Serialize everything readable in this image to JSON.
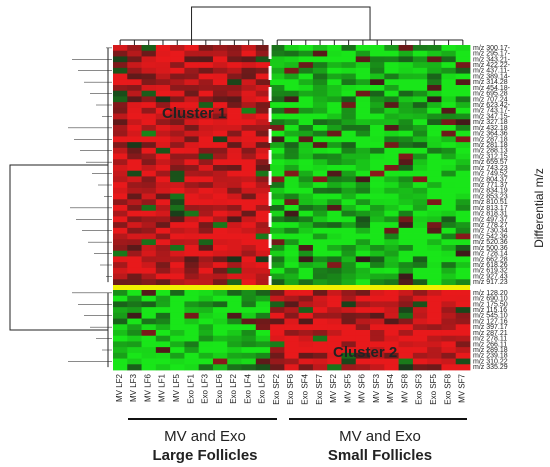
{
  "chart_data": {
    "type": "heatmap",
    "title": "",
    "ylabel": "Differential  m/z",
    "columns": [
      "MV LF2",
      "MV LF3",
      "MV LF6",
      "MV LF1",
      "MV LF5",
      "Exo LF1",
      "Exo LF3",
      "Exo LF6",
      "Exo LF2",
      "Exo LF4",
      "Exo LF5",
      "Exo SF2",
      "Exo SF6",
      "Exo SF4",
      "Exo SF7",
      "MV SF2",
      "MV SF5",
      "MV SF6",
      "MV SF3",
      "MV SF4",
      "MV SF8",
      "Exo SF3",
      "Exo SF5",
      "Exo SF8",
      "MV SF7"
    ],
    "rows": [
      "m/z 300.17-",
      "m/z 295.17-",
      "m/z 343.21-",
      "m/z 422.22-",
      "m/z 437.11-",
      "m/z 389.14-",
      "m/z 314.28",
      "m/z 454.18-",
      "m/z 695.28",
      "m/z 707.24",
      "m/z 623.42-",
      "m/z 743.17-",
      "m/z 347.15-",
      "m/z 327.18",
      "m/z 432.18",
      "m/z 364.36",
      "m/z 287.18",
      "m/z 281.18",
      "m/z 288.13",
      "m/z 312.15",
      "m/z 659.57",
      "m/z 743.23",
      "m/z 749.52",
      "m/z 804.37",
      "m/z 771.37",
      "m/z 834.19",
      "m/z 853.23",
      "m/z 810.51",
      "m/z 813.17",
      "m/z 818.31",
      "m/z 497.37",
      "m/z 778.27",
      "m/z 730.34",
      "m/z 542.36",
      "m/z 520.36",
      "m/z 500.36",
      "m/z 728.14",
      "m/z 662.28",
      "m/z 618.26",
      "m/z 619.32",
      "m/z 927.43",
      "m/z 917.23",
      "m/z 128.20",
      "m/z 690.10",
      "m/z 175.50",
      "m/z 115.16",
      "m/z 545.10",
      "m/z 127.16",
      "m/z 397.17",
      "m/z 287.21",
      "m/z 278.11",
      "m/z 266.11",
      "m/z 289.18",
      "m/z 239.18",
      "m/z 310.22",
      "m/z 335.29"
    ],
    "groups": [
      {
        "sublabel": "MV and Exo",
        "label": "Large Follicles",
        "count": 11
      },
      {
        "sublabel": "MV and Exo",
        "label": "Small Follicles",
        "count": 14
      }
    ],
    "clusters": [
      {
        "label": "Cluster 1",
        "row_count": 42,
        "large_follicles_level": "high",
        "small_follicles_level": "low"
      },
      {
        "label": "Cluster 2",
        "row_count": 14,
        "large_follicles_level": "low",
        "small_follicles_level": "high"
      }
    ],
    "color_scale": {
      "high": "#e8191b",
      "mid": "#1a1a1a",
      "low": "#19e619"
    },
    "separator_color": "#f0f000",
    "legend": "none",
    "grid": false
  }
}
